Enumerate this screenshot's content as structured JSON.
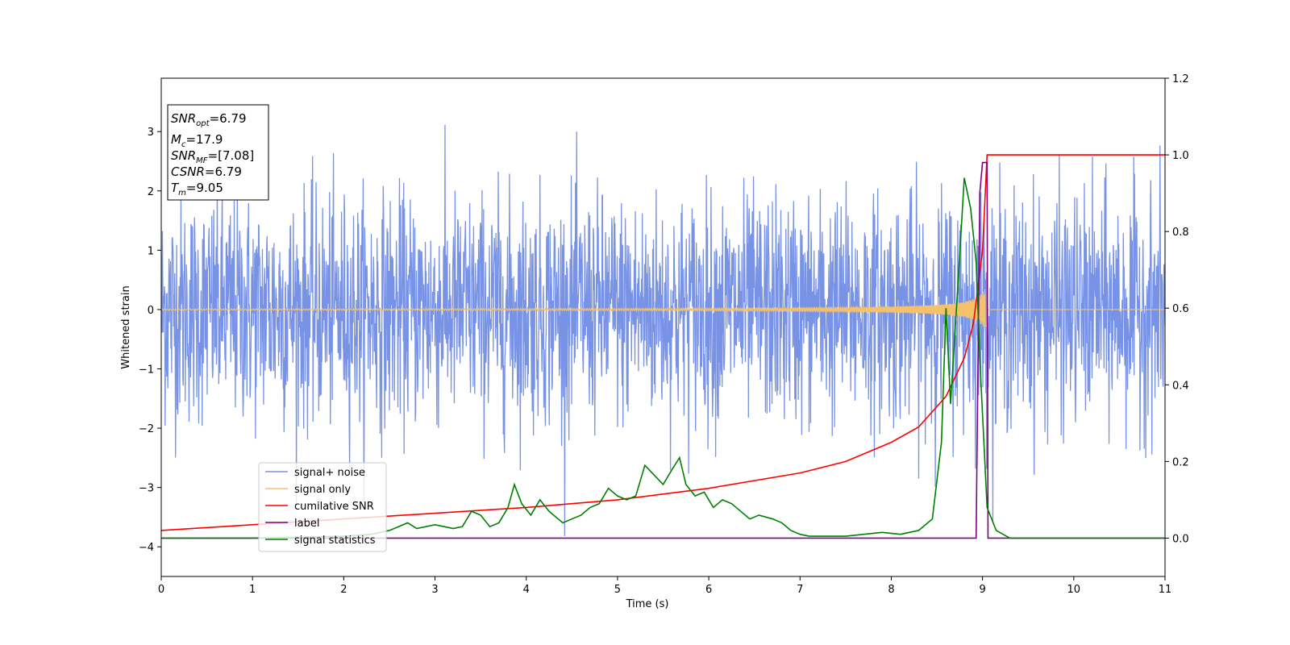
{
  "chart_data": {
    "type": "line",
    "xlabel": "Time (s)",
    "ylabel": "Whitened strain",
    "xlim": [
      0,
      11
    ],
    "ylim_left": [
      -4.5,
      3.9
    ],
    "ylim_right": [
      -0.1,
      1.2
    ],
    "x_ticks": [
      0,
      1,
      2,
      3,
      4,
      5,
      6,
      7,
      8,
      9,
      10,
      11
    ],
    "y_ticks_left": [
      -4,
      -3,
      -2,
      -1,
      0,
      1,
      2,
      3
    ],
    "y_ticks_right": [
      0.0,
      0.2,
      0.4,
      0.6,
      0.8,
      1.0,
      1.2
    ],
    "grid": false,
    "legend_placement": "lower-left",
    "annotation": {
      "snr_opt": "=6.79",
      "mc": "=17.9",
      "snr_mf": "=[7.08]",
      "csnr": "=6.79",
      "tm": "=9.05"
    },
    "series": [
      {
        "name": "signal+ noise",
        "axis": "left",
        "color": "#7893e6",
        "description_amplitude": "noise spanning roughly -2.5 to 2.5 with spikes to ±3.5",
        "x_range": [
          0,
          11
        ]
      },
      {
        "name": "signal only",
        "axis": "left",
        "color": "#f5c26b",
        "merger_time": 9.05,
        "peak_amplitude": 0.45
      },
      {
        "name": "cumilative SNR",
        "axis": "right",
        "color": "#ff0000",
        "x": [
          0,
          1,
          2,
          3,
          4,
          5,
          6,
          7,
          7.5,
          8,
          8.3,
          8.6,
          8.8,
          8.9,
          9.0,
          9.05,
          11
        ],
        "y": [
          0.02,
          0.035,
          0.05,
          0.065,
          0.08,
          0.1,
          0.13,
          0.17,
          0.2,
          0.25,
          0.29,
          0.37,
          0.47,
          0.56,
          0.75,
          1.0,
          1.0
        ]
      },
      {
        "name": "label",
        "axis": "right",
        "color": "#800080",
        "x": [
          0,
          8.93,
          8.97,
          9.0,
          9.05,
          9.06,
          11
        ],
        "y": [
          0.0,
          0.0,
          0.9,
          0.98,
          0.98,
          0.0,
          0.0
        ]
      },
      {
        "name": "signal statistics",
        "axis": "right",
        "color": "#008000",
        "x": [
          0,
          1,
          2,
          2.3,
          2.5,
          2.6,
          2.7,
          2.8,
          3.0,
          3.1,
          3.2,
          3.3,
          3.4,
          3.5,
          3.6,
          3.7,
          3.8,
          3.87,
          3.95,
          4.05,
          4.15,
          4.25,
          4.4,
          4.5,
          4.6,
          4.7,
          4.8,
          4.9,
          5.0,
          5.1,
          5.2,
          5.3,
          5.38,
          5.5,
          5.6,
          5.68,
          5.75,
          5.85,
          5.95,
          6.05,
          6.15,
          6.25,
          6.35,
          6.45,
          6.55,
          6.7,
          6.8,
          6.9,
          7.0,
          7.1,
          7.3,
          7.5,
          7.7,
          7.9,
          8.1,
          8.3,
          8.45,
          8.55,
          8.6,
          8.65,
          8.72,
          8.8,
          8.87,
          8.93,
          8.98,
          9.05,
          9.15,
          9.3,
          9.5,
          9.8,
          11
        ],
        "y": [
          0.0,
          0.0,
          0.005,
          0.01,
          0.02,
          0.03,
          0.04,
          0.025,
          0.035,
          0.03,
          0.025,
          0.03,
          0.07,
          0.06,
          0.03,
          0.04,
          0.08,
          0.14,
          0.09,
          0.06,
          0.1,
          0.07,
          0.04,
          0.05,
          0.06,
          0.08,
          0.09,
          0.13,
          0.11,
          0.1,
          0.11,
          0.19,
          0.17,
          0.14,
          0.18,
          0.21,
          0.14,
          0.11,
          0.12,
          0.08,
          0.1,
          0.09,
          0.07,
          0.05,
          0.06,
          0.05,
          0.04,
          0.02,
          0.01,
          0.005,
          0.005,
          0.005,
          0.01,
          0.015,
          0.01,
          0.02,
          0.05,
          0.25,
          0.6,
          0.35,
          0.62,
          0.94,
          0.86,
          0.72,
          0.42,
          0.08,
          0.02,
          0.0,
          0.0,
          0.0,
          0.0
        ]
      }
    ]
  }
}
